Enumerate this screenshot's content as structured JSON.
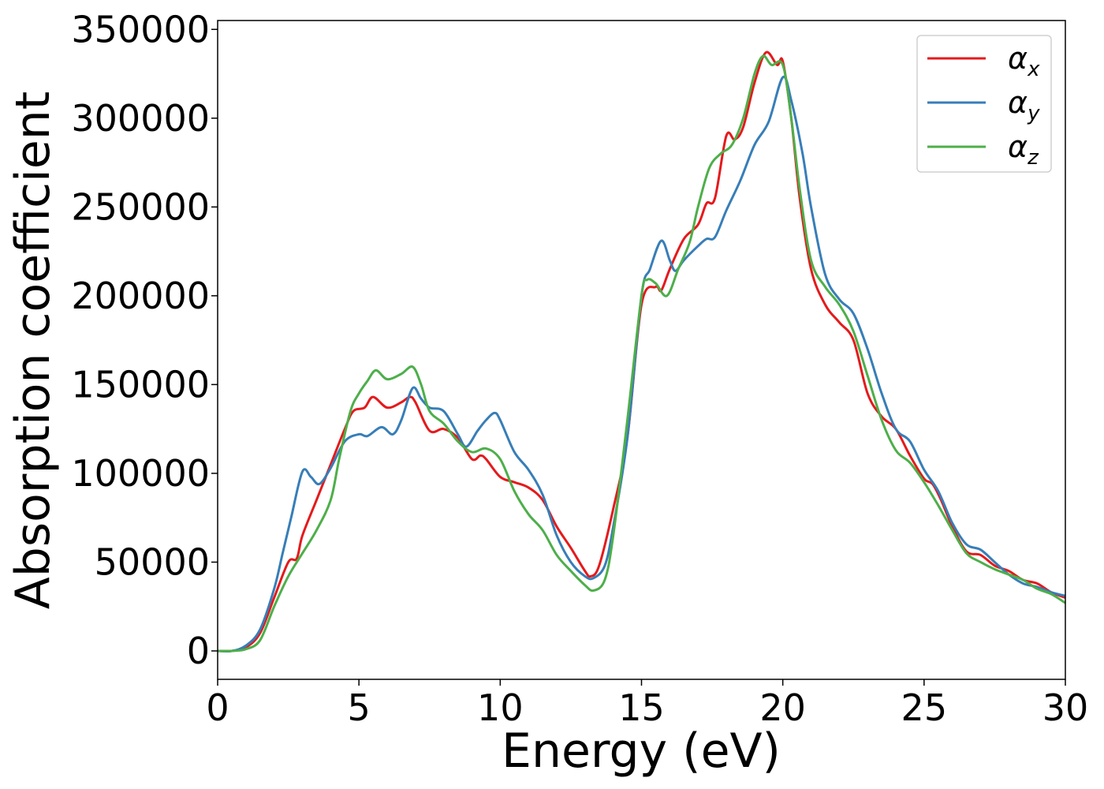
{
  "chart_data": {
    "type": "line",
    "xlabel": "Energy (eV)",
    "ylabel": "Absorption coefficient",
    "xlim": [
      0,
      30
    ],
    "ylim": [
      -16000,
      355000
    ],
    "xticks": [
      0,
      5,
      10,
      15,
      20,
      25,
      30
    ],
    "yticks": [
      0,
      50000,
      100000,
      150000,
      200000,
      250000,
      300000,
      350000
    ],
    "grid": false,
    "legend_position": "top-right",
    "series": [
      {
        "name": "α",
        "subscript": "x",
        "color": "#e41a1c",
        "points": [
          [
            0,
            0
          ],
          [
            0.5,
            0
          ],
          [
            1,
            2000
          ],
          [
            1.5,
            10000
          ],
          [
            2,
            30000
          ],
          [
            2.5,
            50000
          ],
          [
            2.8,
            52000
          ],
          [
            3,
            65000
          ],
          [
            3.5,
            85000
          ],
          [
            4,
            105000
          ],
          [
            4.5,
            125000
          ],
          [
            4.8,
            135000
          ],
          [
            5.2,
            137000
          ],
          [
            5.5,
            143000
          ],
          [
            6,
            137000
          ],
          [
            6.5,
            140000
          ],
          [
            6.8,
            143000
          ],
          [
            7,
            140000
          ],
          [
            7.5,
            124000
          ],
          [
            8,
            125000
          ],
          [
            8.5,
            120000
          ],
          [
            9,
            108000
          ],
          [
            9.3,
            110000
          ],
          [
            9.5,
            108000
          ],
          [
            10,
            98000
          ],
          [
            10.5,
            95000
          ],
          [
            11,
            92000
          ],
          [
            11.5,
            85000
          ],
          [
            12,
            70000
          ],
          [
            12.5,
            58000
          ],
          [
            13,
            45000
          ],
          [
            13.2,
            42000
          ],
          [
            13.5,
            48000
          ],
          [
            14,
            80000
          ],
          [
            14.5,
            120000
          ],
          [
            15,
            195000
          ],
          [
            15.5,
            205000
          ],
          [
            15.7,
            203000
          ],
          [
            16,
            215000
          ],
          [
            16.5,
            232000
          ],
          [
            17,
            240000
          ],
          [
            17.3,
            252000
          ],
          [
            17.6,
            255000
          ],
          [
            18,
            290000
          ],
          [
            18.3,
            288000
          ],
          [
            18.6,
            295000
          ],
          [
            19,
            320000
          ],
          [
            19.4,
            337000
          ],
          [
            19.8,
            330000
          ],
          [
            20,
            332000
          ],
          [
            20.3,
            300000
          ],
          [
            20.6,
            255000
          ],
          [
            21,
            215000
          ],
          [
            21.5,
            195000
          ],
          [
            22,
            185000
          ],
          [
            22.5,
            175000
          ],
          [
            23,
            145000
          ],
          [
            23.5,
            132000
          ],
          [
            24,
            125000
          ],
          [
            24.5,
            110000
          ],
          [
            25,
            97000
          ],
          [
            25.3,
            94000
          ],
          [
            25.6,
            85000
          ],
          [
            26,
            70000
          ],
          [
            26.5,
            56000
          ],
          [
            27,
            54000
          ],
          [
            27.5,
            48000
          ],
          [
            28,
            45000
          ],
          [
            28.5,
            40000
          ],
          [
            29,
            38000
          ],
          [
            29.5,
            33000
          ],
          [
            30,
            30000
          ]
        ]
      },
      {
        "name": "α",
        "subscript": "y",
        "color": "#377eb8",
        "points": [
          [
            0,
            0
          ],
          [
            0.5,
            0
          ],
          [
            1,
            3000
          ],
          [
            1.5,
            12000
          ],
          [
            2,
            35000
          ],
          [
            2.3,
            55000
          ],
          [
            2.6,
            75000
          ],
          [
            3,
            101000
          ],
          [
            3.3,
            98000
          ],
          [
            3.6,
            94000
          ],
          [
            4,
            103000
          ],
          [
            4.5,
            118000
          ],
          [
            5,
            122000
          ],
          [
            5.3,
            121000
          ],
          [
            5.8,
            126000
          ],
          [
            6.2,
            122000
          ],
          [
            6.5,
            130000
          ],
          [
            6.9,
            148000
          ],
          [
            7.2,
            142000
          ],
          [
            7.5,
            137000
          ],
          [
            8,
            135000
          ],
          [
            8.5,
            122000
          ],
          [
            8.8,
            115000
          ],
          [
            9.2,
            124000
          ],
          [
            9.5,
            130000
          ],
          [
            9.8,
            134000
          ],
          [
            10,
            130000
          ],
          [
            10.5,
            112000
          ],
          [
            11,
            102000
          ],
          [
            11.5,
            88000
          ],
          [
            12,
            65000
          ],
          [
            12.5,
            50000
          ],
          [
            13,
            42000
          ],
          [
            13.3,
            41000
          ],
          [
            13.7,
            48000
          ],
          [
            14,
            70000
          ],
          [
            14.5,
            120000
          ],
          [
            15,
            200000
          ],
          [
            15.3,
            215000
          ],
          [
            15.7,
            231000
          ],
          [
            16,
            220000
          ],
          [
            16.2,
            214000
          ],
          [
            16.5,
            220000
          ],
          [
            17,
            228000
          ],
          [
            17.3,
            232000
          ],
          [
            17.6,
            233000
          ],
          [
            18,
            248000
          ],
          [
            18.5,
            265000
          ],
          [
            19,
            285000
          ],
          [
            19.5,
            298000
          ],
          [
            20,
            323000
          ],
          [
            20.3,
            310000
          ],
          [
            20.7,
            280000
          ],
          [
            21,
            250000
          ],
          [
            21.5,
            212000
          ],
          [
            22,
            198000
          ],
          [
            22.5,
            190000
          ],
          [
            23,
            170000
          ],
          [
            23.5,
            145000
          ],
          [
            24,
            125000
          ],
          [
            24.5,
            118000
          ],
          [
            25,
            102000
          ],
          [
            25.5,
            90000
          ],
          [
            26,
            72000
          ],
          [
            26.5,
            60000
          ],
          [
            27,
            57000
          ],
          [
            27.5,
            50000
          ],
          [
            28,
            43000
          ],
          [
            28.5,
            38000
          ],
          [
            29,
            36000
          ],
          [
            29.5,
            33000
          ],
          [
            30,
            31000
          ]
        ]
      },
      {
        "name": "α",
        "subscript": "z",
        "color": "#4daf4a",
        "points": [
          [
            0,
            0
          ],
          [
            0.5,
            0
          ],
          [
            1,
            1000
          ],
          [
            1.5,
            6000
          ],
          [
            2,
            25000
          ],
          [
            2.5,
            42000
          ],
          [
            3,
            55000
          ],
          [
            3.5,
            68000
          ],
          [
            4,
            85000
          ],
          [
            4.3,
            108000
          ],
          [
            4.7,
            135000
          ],
          [
            5,
            145000
          ],
          [
            5.3,
            152000
          ],
          [
            5.6,
            158000
          ],
          [
            6,
            153000
          ],
          [
            6.5,
            156000
          ],
          [
            6.9,
            160000
          ],
          [
            7.2,
            150000
          ],
          [
            7.5,
            135000
          ],
          [
            8,
            128000
          ],
          [
            8.5,
            118000
          ],
          [
            9,
            112000
          ],
          [
            9.5,
            114000
          ],
          [
            10,
            108000
          ],
          [
            10.5,
            90000
          ],
          [
            11,
            77000
          ],
          [
            11.5,
            68000
          ],
          [
            12,
            54000
          ],
          [
            12.5,
            45000
          ],
          [
            13,
            37000
          ],
          [
            13.3,
            34000
          ],
          [
            13.7,
            40000
          ],
          [
            14,
            65000
          ],
          [
            14.5,
            130000
          ],
          [
            15,
            200000
          ],
          [
            15.2,
            209000
          ],
          [
            15.5,
            207000
          ],
          [
            15.9,
            200000
          ],
          [
            16.3,
            215000
          ],
          [
            16.7,
            230000
          ],
          [
            17,
            250000
          ],
          [
            17.4,
            272000
          ],
          [
            17.8,
            280000
          ],
          [
            18.2,
            285000
          ],
          [
            18.6,
            300000
          ],
          [
            19,
            325000
          ],
          [
            19.3,
            335000
          ],
          [
            19.6,
            330000
          ],
          [
            20,
            330000
          ],
          [
            20.3,
            300000
          ],
          [
            20.6,
            260000
          ],
          [
            21,
            220000
          ],
          [
            21.5,
            205000
          ],
          [
            22,
            195000
          ],
          [
            22.5,
            180000
          ],
          [
            23,
            155000
          ],
          [
            23.5,
            130000
          ],
          [
            24,
            113000
          ],
          [
            24.5,
            106000
          ],
          [
            25,
            95000
          ],
          [
            25.5,
            82000
          ],
          [
            26,
            68000
          ],
          [
            26.5,
            55000
          ],
          [
            27,
            50000
          ],
          [
            27.5,
            46000
          ],
          [
            28,
            43000
          ],
          [
            28.5,
            40000
          ],
          [
            29,
            35000
          ],
          [
            29.5,
            32000
          ],
          [
            30,
            27000
          ]
        ]
      }
    ]
  }
}
